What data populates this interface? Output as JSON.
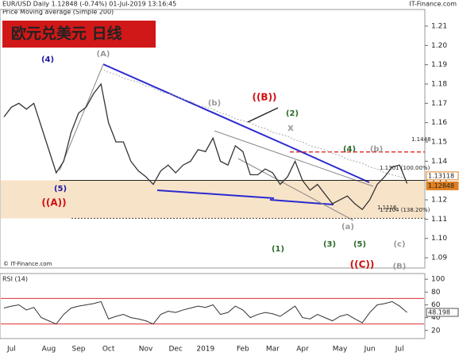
{
  "header": {
    "symbol_line": "EUR/USD  Daily  1.12848 (-0.74%)  01-Jul-2019 13:16:45",
    "site": "IT-Finance.com",
    "indicator_line": "Price  Moving average (Simple 200)",
    "title": "欧元兑美元  日线",
    "copyright": "© IT-Finance.com"
  },
  "chart_data": [
    {
      "type": "line",
      "name": "price",
      "categories": [
        null,
        "Jul",
        null,
        null,
        null,
        null,
        "Aug",
        null,
        null,
        null,
        "Sep",
        null,
        null,
        null,
        "Oct",
        null,
        null,
        null,
        null,
        "Nov",
        null,
        null,
        null,
        "Dec",
        null,
        null,
        null,
        "2019",
        null,
        null,
        null,
        null,
        "Feb",
        null,
        null,
        null,
        "Mar",
        null,
        null,
        null,
        "Apr",
        null,
        null,
        null,
        null,
        "May",
        null,
        null,
        null,
        "Jun",
        null,
        null,
        null,
        "Jul",
        null
      ],
      "series": [
        {
          "name": "Price",
          "color": "#333333",
          "values": [
            1.163,
            1.168,
            1.17,
            1.167,
            1.17,
            1.158,
            1.146,
            1.134,
            1.14,
            1.155,
            1.165,
            1.168,
            1.175,
            1.18,
            1.16,
            1.15,
            1.15,
            1.14,
            1.135,
            1.132,
            1.128,
            1.135,
            1.138,
            1.134,
            1.138,
            1.14,
            1.146,
            1.145,
            1.152,
            1.14,
            1.138,
            1.148,
            1.145,
            1.133,
            1.133,
            1.136,
            1.134,
            1.128,
            1.132,
            1.14,
            1.13,
            1.125,
            1.128,
            1.123,
            1.118,
            1.12,
            1.122,
            1.118,
            1.115,
            1.12,
            1.128,
            1.132,
            1.137,
            1.138,
            1.12848
          ]
        },
        {
          "name": "Moving average (Simple 200)",
          "color": "#aaaaaa",
          "values": [
            null,
            null,
            null,
            null,
            null,
            null,
            null,
            null,
            null,
            null,
            null,
            null,
            null,
            1.188,
            1.186,
            1.185,
            1.183,
            1.182,
            1.181,
            1.179,
            1.178,
            1.176,
            1.175,
            1.174,
            1.172,
            1.171,
            1.169,
            1.168,
            1.167,
            1.165,
            1.164,
            1.162,
            1.161,
            1.16,
            1.158,
            1.157,
            1.155,
            1.154,
            1.153,
            1.151,
            1.15,
            1.148,
            1.147,
            1.146,
            1.144,
            1.143,
            1.141,
            1.14,
            1.139,
            1.137,
            1.136,
            1.134,
            1.133,
            1.132,
            1.131
          ]
        }
      ],
      "ylim": [
        1.0847,
        1.2186
      ],
      "yticks": [
        1.09,
        {
          "value": 1.1,
          "label": "1.10"
        },
        1.11,
        1.12,
        1.13,
        1.14,
        1.15,
        1.16,
        1.17,
        1.18,
        1.19,
        {
          "value": 1.2,
          "label": "1.20"
        },
        1.21
      ],
      "levels": [
        {
          "value": 1.1448,
          "label": "1.1448",
          "color": "#e03030"
        },
        {
          "value": 1.1301,
          "label": "1.1301 (100.00%)",
          "color": "#222222"
        },
        {
          "value": 1.1104,
          "label": "1.1104 (138.20%)",
          "color": "#444444"
        },
        {
          "value": 1.1116,
          "label": "1.1116",
          "color": "#e03030"
        }
      ],
      "price_markers": [
        1.13118,
        1.12848
      ],
      "annotations": [
        {
          "text": "(4)",
          "color": "#1a1aa0"
        },
        {
          "text": "(A)",
          "color": "#999999"
        },
        {
          "text": "(5)",
          "color": "#1a1aa0"
        },
        {
          "text": "((A))",
          "color": "#d01010"
        },
        {
          "text": "(b)",
          "color": "#999999"
        },
        {
          "text": "((B))",
          "color": "#d01010"
        },
        {
          "text": "(2)",
          "color": "#2a6a2a"
        },
        {
          "text": "X",
          "color": "#999999"
        },
        {
          "text": "(4)",
          "color": "#2a6a2a"
        },
        {
          "text": "(b)",
          "color": "#999999"
        },
        {
          "text": "(1)",
          "color": "#2a6a2a"
        },
        {
          "text": "(3)",
          "color": "#2a6a2a"
        },
        {
          "text": "(5)",
          "color": "#2a6a2a"
        },
        {
          "text": "((C))",
          "color": "#d01010"
        },
        {
          "text": "(a)",
          "color": "#999999"
        },
        {
          "text": "(c)",
          "color": "#999999"
        },
        {
          "text": "(B)",
          "color": "#999999"
        }
      ]
    },
    {
      "type": "line",
      "name": "RSI (14)",
      "series": [
        {
          "name": "RSI (14)",
          "color": "#333333",
          "values": [
            55,
            58,
            60,
            52,
            56,
            40,
            35,
            30,
            45,
            55,
            58,
            60,
            62,
            65,
            38,
            42,
            45,
            40,
            38,
            35,
            30,
            45,
            50,
            48,
            52,
            55,
            58,
            56,
            60,
            45,
            48,
            58,
            52,
            40,
            45,
            48,
            46,
            42,
            50,
            58,
            40,
            38,
            45,
            40,
            35,
            42,
            45,
            38,
            32,
            48,
            60,
            62,
            65,
            58,
            48.198
          ]
        }
      ],
      "ylim": [
        7.3,
        108.9
      ],
      "yticks": [
        20,
        40,
        60,
        80,
        100
      ],
      "levels": [
        30,
        70
      ],
      "level_color": "#e03030"
    }
  ]
}
